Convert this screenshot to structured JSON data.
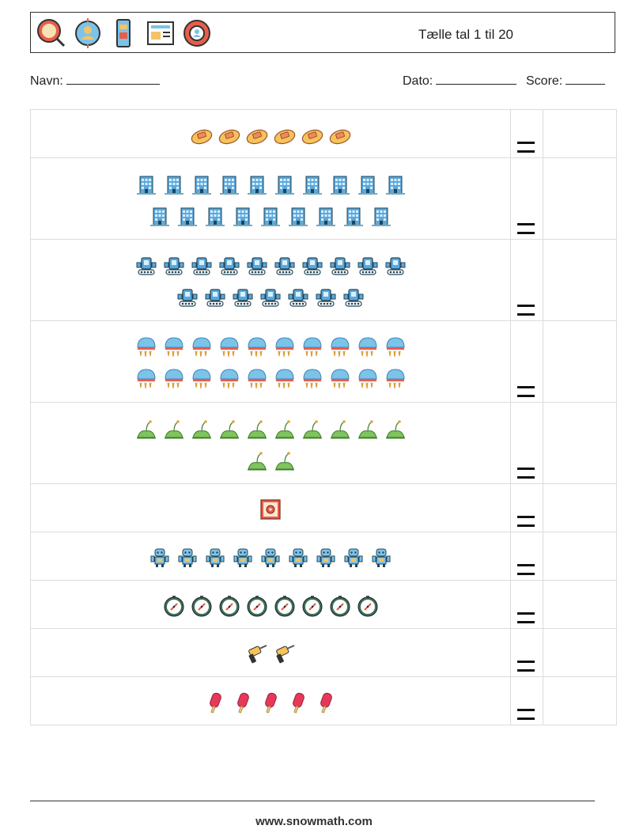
{
  "header": {
    "title": "Tælle tal 1 til 20",
    "icons": [
      "magnifier-badge-icon",
      "user-target-icon",
      "phone-app-icon",
      "newspaper-icon",
      "lifebuoy-user-icon"
    ]
  },
  "form": {
    "name_label": "Navn:",
    "date_label": "Dato:",
    "score_label": "Score:"
  },
  "rows": [
    {
      "icon": "leaf-tag-icon",
      "count": 6
    },
    {
      "icon": "building-icon",
      "count": 19
    },
    {
      "icon": "tank-robot-icon",
      "count": 17
    },
    {
      "icon": "jellyfish-icon",
      "count": 20
    },
    {
      "icon": "sprout-icon",
      "count": 12
    },
    {
      "icon": "safe-icon",
      "count": 1
    },
    {
      "icon": "robot-icon",
      "count": 9
    },
    {
      "icon": "compass-icon",
      "count": 8
    },
    {
      "icon": "drill-icon",
      "count": 2
    },
    {
      "icon": "popsicle-icon",
      "count": 5
    }
  ],
  "footer": {
    "website": "www.snowmath.com"
  }
}
